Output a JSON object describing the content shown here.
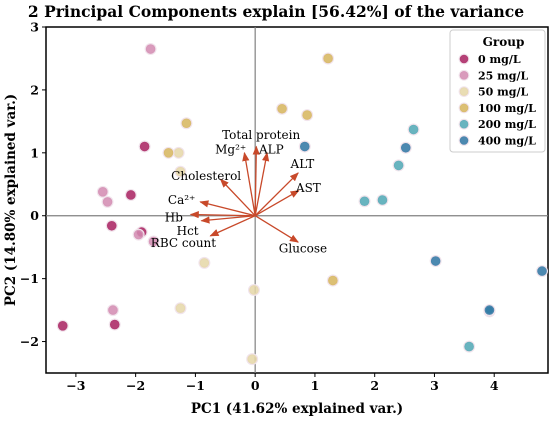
{
  "chart_data": {
    "type": "scatter",
    "title": "2 Principal Components explain [56.42%] of the variance",
    "xlabel": "PC1 (41.62% explained var.)",
    "ylabel": "PC2 (14.80% explained var.)",
    "xlim": [
      -3.5,
      4.9
    ],
    "ylim": [
      -2.5,
      3.0
    ],
    "xticks": [
      -3,
      -2,
      -1,
      0,
      1,
      2,
      3,
      4
    ],
    "yticks": [
      -2,
      -1,
      0,
      1,
      2,
      3
    ],
    "zero_lines": true,
    "legend": {
      "title": "Group",
      "position": "top-right"
    },
    "series": [
      {
        "name": "0 mg/L",
        "color": "#a8205f",
        "points": [
          [
            -3.22,
            -1.75
          ],
          [
            -2.35,
            -1.73
          ],
          [
            -2.4,
            -0.16
          ],
          [
            -2.08,
            0.33
          ],
          [
            -1.9,
            -0.26
          ],
          [
            -1.85,
            1.1
          ]
        ]
      },
      {
        "name": "25 mg/L",
        "color": "#d289b0",
        "points": [
          [
            -1.75,
            2.65
          ],
          [
            -2.47,
            0.22
          ],
          [
            -2.38,
            -1.5
          ],
          [
            -1.7,
            -0.41
          ],
          [
            -1.95,
            -0.3
          ],
          [
            -2.55,
            0.38
          ]
        ]
      },
      {
        "name": "50 mg/L",
        "color": "#e5d7a7",
        "points": [
          [
            -1.25,
            -1.47
          ],
          [
            -0.85,
            -0.75
          ],
          [
            -1.25,
            0.7
          ],
          [
            -1.28,
            1.0
          ],
          [
            -0.02,
            -1.18
          ],
          [
            -0.05,
            -2.28
          ]
        ]
      },
      {
        "name": "100 mg/L",
        "color": "#d6b55c",
        "points": [
          [
            1.22,
            2.5
          ],
          [
            0.45,
            1.7
          ],
          [
            0.87,
            1.6
          ],
          [
            -1.15,
            1.47
          ],
          [
            1.3,
            -1.03
          ],
          [
            -1.45,
            1.0
          ]
        ]
      },
      {
        "name": "200 mg/L",
        "color": "#4ea7b4",
        "points": [
          [
            2.65,
            1.37
          ],
          [
            2.4,
            0.8
          ],
          [
            1.83,
            0.23
          ],
          [
            2.13,
            0.25
          ],
          [
            3.58,
            -2.08
          ],
          [
            3.92,
            -1.52
          ]
        ]
      },
      {
        "name": "400 mg/L",
        "color": "#2d74a2",
        "points": [
          [
            0.83,
            1.1
          ],
          [
            2.52,
            1.08
          ],
          [
            3.02,
            -0.72
          ],
          [
            4.8,
            -0.88
          ],
          [
            3.92,
            -1.5
          ]
        ]
      }
    ],
    "loadings": [
      {
        "name": "Total protein",
        "x": 0.02,
        "y": 1.1,
        "label_x": 0.1,
        "label_y": 1.28
      },
      {
        "name": "Mg²⁺",
        "x": -0.18,
        "y": 1.0,
        "label_x": -0.41,
        "label_y": 1.05
      },
      {
        "name": "ALP",
        "x": 0.2,
        "y": 1.0,
        "label_x": 0.27,
        "label_y": 1.05
      },
      {
        "name": "ALT",
        "x": 0.72,
        "y": 0.68,
        "label_x": 0.79,
        "label_y": 0.82
      },
      {
        "name": "Cholesterol",
        "x": -0.58,
        "y": 0.58,
        "label_x": -0.82,
        "label_y": 0.63
      },
      {
        "name": "AST",
        "x": 0.73,
        "y": 0.4,
        "label_x": 0.89,
        "label_y": 0.44
      },
      {
        "name": "Ca²⁺",
        "x": -0.92,
        "y": 0.22,
        "label_x": -1.23,
        "label_y": 0.25
      },
      {
        "name": "Hb",
        "x": -1.08,
        "y": 0.02,
        "label_x": -1.36,
        "label_y": -0.03
      },
      {
        "name": "Hct",
        "x": -0.9,
        "y": -0.08,
        "label_x": -1.13,
        "label_y": -0.24
      },
      {
        "name": "RBC count",
        "x": -0.75,
        "y": -0.32,
        "label_x": -1.2,
        "label_y": -0.43
      },
      {
        "name": "Glucose",
        "x": 0.72,
        "y": -0.42,
        "label_x": 0.8,
        "label_y": -0.52
      }
    ],
    "loading_color": "#c8492a"
  }
}
